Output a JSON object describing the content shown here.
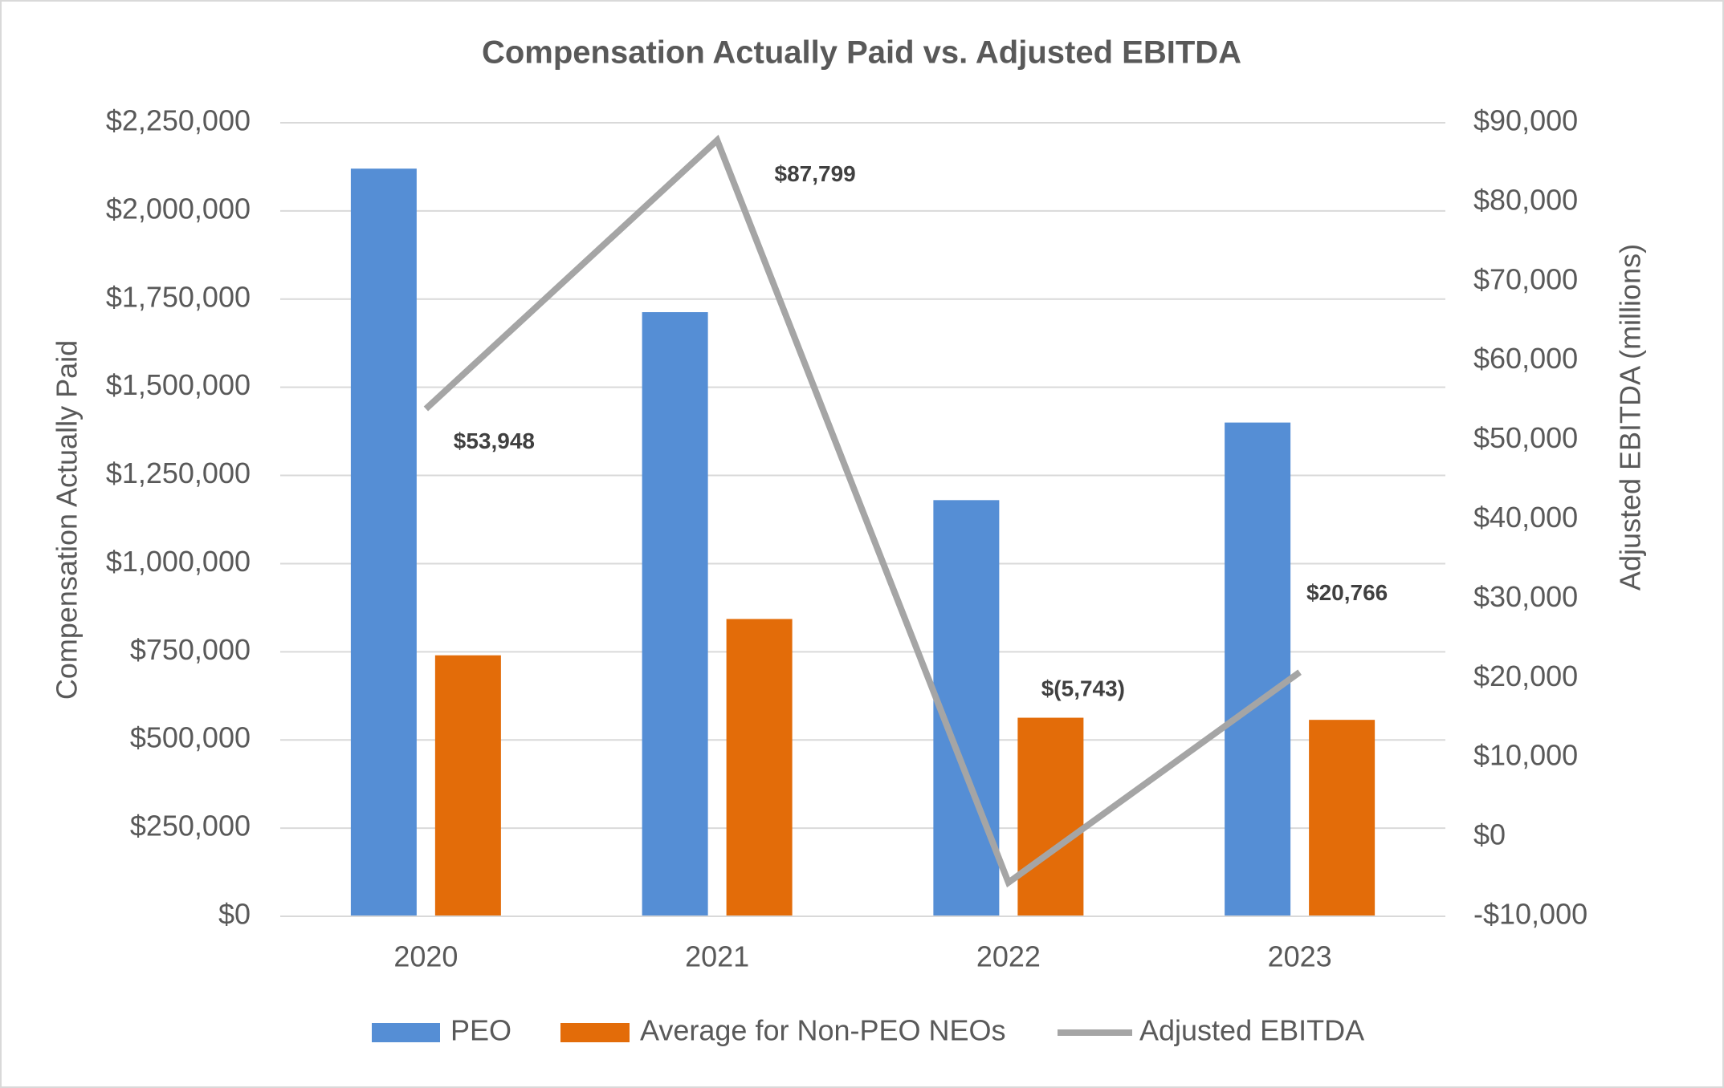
{
  "chart_data": {
    "type": "bar",
    "title": "Compensation Actually Paid vs. Adjusted EBITDA",
    "y_label": "Compensation Actually Paid",
    "y2_label": "Adjusted EBITDA (millions)",
    "categories": [
      "2020",
      "2021",
      "2022",
      "2023"
    ],
    "series": [
      {
        "name": "PEO",
        "type": "bar",
        "color": "#558ed5",
        "values": [
          2120000,
          1713000,
          1180000,
          1400000
        ]
      },
      {
        "name": "Average for Non-PEO NEOs",
        "type": "bar",
        "color": "#e36c09",
        "values": [
          740000,
          843000,
          563000,
          557000
        ]
      },
      {
        "name": "Adjusted EBITDA",
        "type": "line",
        "axis": "y2",
        "color": "#a5a5a5",
        "values": [
          53948,
          87799,
          -5743,
          20766
        ],
        "value_labels": [
          "$53,948",
          "$87,799",
          "$(5,743)",
          "$20,766"
        ]
      }
    ],
    "ylim": [
      0,
      2250000
    ],
    "yticks": [
      {
        "value": 0,
        "label": "$0"
      },
      {
        "value": 250000,
        "label": "$250,000"
      },
      {
        "value": 500000,
        "label": "$500,000"
      },
      {
        "value": 750000,
        "label": "$750,000"
      },
      {
        "value": 1000000,
        "label": "$1,000,000"
      },
      {
        "value": 1250000,
        "label": "$1,250,000"
      },
      {
        "value": 1500000,
        "label": "$1,500,000"
      },
      {
        "value": 1750000,
        "label": "$1,750,000"
      },
      {
        "value": 2000000,
        "label": "$2,000,000"
      },
      {
        "value": 2250000,
        "label": "$2,250,000"
      }
    ],
    "y2lim": [
      -10000,
      90000
    ],
    "y2ticks": [
      {
        "value": -10000,
        "label": "-$10,000"
      },
      {
        "value": 0,
        "label": "$0"
      },
      {
        "value": 10000,
        "label": "$10,000"
      },
      {
        "value": 20000,
        "label": "$20,000"
      },
      {
        "value": 30000,
        "label": "$30,000"
      },
      {
        "value": 40000,
        "label": "$40,000"
      },
      {
        "value": 50000,
        "label": "$50,000"
      },
      {
        "value": 60000,
        "label": "$60,000"
      },
      {
        "value": 70000,
        "label": "$70,000"
      },
      {
        "value": 80000,
        "label": "$80,000"
      },
      {
        "value": 90000,
        "label": "$90,000"
      }
    ],
    "grid": true,
    "legend": "bottom"
  }
}
